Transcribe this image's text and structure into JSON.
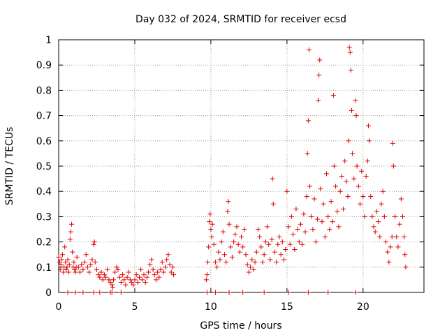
{
  "chart_data": {
    "type": "scatter",
    "title": "Day 032 of 2024, SRMTID for receiver ecsd",
    "xlabel": "GPS time / hours",
    "ylabel": "SRMTID / TECUs",
    "xlim": [
      0,
      24
    ],
    "ylim": [
      0,
      1
    ],
    "xticks": [
      0,
      5,
      10,
      15,
      20
    ],
    "xtick_labels": [
      "0",
      "5",
      "10",
      "15",
      "20"
    ],
    "yticks": [
      0,
      0.1,
      0.2,
      0.3,
      0.4,
      0.5,
      0.6,
      0.7,
      0.8,
      0.9,
      1
    ],
    "ytick_labels": [
      "0",
      "0.1",
      "0.2",
      "0.3",
      "0.4",
      "0.5",
      "0.6",
      "0.7",
      "0.8",
      "0.9",
      "1"
    ],
    "grid": true,
    "marker": "plus",
    "color": "#e00000",
    "series": [
      {
        "name": "SRMTID",
        "points": [
          [
            0.0,
            0.14
          ],
          [
            0.05,
            0.12
          ],
          [
            0.1,
            0.09
          ],
          [
            0.15,
            0.11
          ],
          [
            0.2,
            0.13
          ],
          [
            0.25,
            0.15
          ],
          [
            0.3,
            0.08
          ],
          [
            0.35,
            0.1
          ],
          [
            0.4,
            0.18
          ],
          [
            0.45,
            0.12
          ],
          [
            0.5,
            0.09
          ],
          [
            0.55,
            0.1
          ],
          [
            0.6,
            0.13
          ],
          [
            0.65,
            0.08
          ],
          [
            0.7,
            0.11
          ],
          [
            0.75,
            0.21
          ],
          [
            0.8,
            0.24
          ],
          [
            0.85,
            0.27
          ],
          [
            0.9,
            0.16
          ],
          [
            0.95,
            0.1
          ],
          [
            1.0,
            0.12
          ],
          [
            1.05,
            0.09
          ],
          [
            1.1,
            0.08
          ],
          [
            1.15,
            0.1
          ],
          [
            1.2,
            0.14
          ],
          [
            1.3,
            0.1
          ],
          [
            1.4,
            0.08
          ],
          [
            1.5,
            0.11
          ],
          [
            1.6,
            0.09
          ],
          [
            1.7,
            0.12
          ],
          [
            1.8,
            0.15
          ],
          [
            1.9,
            0.1
          ],
          [
            2.0,
            0.08
          ],
          [
            2.1,
            0.11
          ],
          [
            2.2,
            0.13
          ],
          [
            2.3,
            0.19
          ],
          [
            2.35,
            0.2
          ],
          [
            2.4,
            0.12
          ],
          [
            2.5,
            0.09
          ],
          [
            2.6,
            0.07
          ],
          [
            2.7,
            0.06
          ],
          [
            2.8,
            0.08
          ],
          [
            2.9,
            0.05
          ],
          [
            3.0,
            0.07
          ],
          [
            3.1,
            0.06
          ],
          [
            3.2,
            0.09
          ],
          [
            3.3,
            0.05
          ],
          [
            3.4,
            0.04
          ],
          [
            3.5,
            0.03
          ],
          [
            3.55,
            0.02
          ],
          [
            3.6,
            0.05
          ],
          [
            3.7,
            0.08
          ],
          [
            3.8,
            0.1
          ],
          [
            3.9,
            0.09
          ],
          [
            4.0,
            0.06
          ],
          [
            4.1,
            0.04
          ],
          [
            4.2,
            0.07
          ],
          [
            4.3,
            0.05
          ],
          [
            4.4,
            0.03
          ],
          [
            4.5,
            0.06
          ],
          [
            4.6,
            0.08
          ],
          [
            4.7,
            0.05
          ],
          [
            4.8,
            0.04
          ],
          [
            4.9,
            0.03
          ],
          [
            5.0,
            0.05
          ],
          [
            5.1,
            0.07
          ],
          [
            5.2,
            0.04
          ],
          [
            5.3,
            0.06
          ],
          [
            5.4,
            0.09
          ],
          [
            5.5,
            0.05
          ],
          [
            5.6,
            0.07
          ],
          [
            5.7,
            0.04
          ],
          [
            5.8,
            0.06
          ],
          [
            5.9,
            0.08
          ],
          [
            6.0,
            0.11
          ],
          [
            6.1,
            0.13
          ],
          [
            6.2,
            0.09
          ],
          [
            6.3,
            0.07
          ],
          [
            6.4,
            0.05
          ],
          [
            6.5,
            0.08
          ],
          [
            6.6,
            0.06
          ],
          [
            6.7,
            0.09
          ],
          [
            6.8,
            0.12
          ],
          [
            6.9,
            0.08
          ],
          [
            7.0,
            0.1
          ],
          [
            7.1,
            0.13
          ],
          [
            7.2,
            0.15
          ],
          [
            7.3,
            0.11
          ],
          [
            7.4,
            0.08
          ],
          [
            7.5,
            0.1
          ],
          [
            7.55,
            0.07
          ],
          [
            9.7,
            0.05
          ],
          [
            9.75,
            0.07
          ],
          [
            9.8,
            0.12
          ],
          [
            9.85,
            0.18
          ],
          [
            9.9,
            0.28
          ],
          [
            9.95,
            0.31
          ],
          [
            10.0,
            0.25
          ],
          [
            10.05,
            0.22
          ],
          [
            10.1,
            0.27
          ],
          [
            10.2,
            0.19
          ],
          [
            10.3,
            0.12
          ],
          [
            10.4,
            0.1
          ],
          [
            10.5,
            0.16
          ],
          [
            10.6,
            0.13
          ],
          [
            10.7,
            0.2
          ],
          [
            10.8,
            0.24
          ],
          [
            10.9,
            0.15
          ],
          [
            11.0,
            0.12
          ],
          [
            11.1,
            0.32
          ],
          [
            11.15,
            0.36
          ],
          [
            11.2,
            0.27
          ],
          [
            11.3,
            0.18
          ],
          [
            11.4,
            0.14
          ],
          [
            11.5,
            0.2
          ],
          [
            11.6,
            0.23
          ],
          [
            11.7,
            0.26
          ],
          [
            11.8,
            0.19
          ],
          [
            11.9,
            0.16
          ],
          [
            12.0,
            0.22
          ],
          [
            12.1,
            0.18
          ],
          [
            12.2,
            0.25
          ],
          [
            12.3,
            0.15
          ],
          [
            12.4,
            0.11
          ],
          [
            12.5,
            0.08
          ],
          [
            12.6,
            0.1
          ],
          [
            12.7,
            0.13
          ],
          [
            12.8,
            0.09
          ],
          [
            12.9,
            0.12
          ],
          [
            13.0,
            0.16
          ],
          [
            13.1,
            0.25
          ],
          [
            13.2,
            0.22
          ],
          [
            13.3,
            0.18
          ],
          [
            13.4,
            0.12
          ],
          [
            13.5,
            0.15
          ],
          [
            13.6,
            0.2
          ],
          [
            13.7,
            0.26
          ],
          [
            13.8,
            0.19
          ],
          [
            13.9,
            0.13
          ],
          [
            14.0,
            0.21
          ],
          [
            14.05,
            0.45
          ],
          [
            14.1,
            0.35
          ],
          [
            14.2,
            0.16
          ],
          [
            14.3,
            0.12
          ],
          [
            14.4,
            0.19
          ],
          [
            14.5,
            0.22
          ],
          [
            14.6,
            0.15
          ],
          [
            14.7,
            0.2
          ],
          [
            14.8,
            0.13
          ],
          [
            14.9,
            0.17
          ],
          [
            15.0,
            0.4
          ],
          [
            15.1,
            0.26
          ],
          [
            15.2,
            0.19
          ],
          [
            15.3,
            0.3
          ],
          [
            15.4,
            0.23
          ],
          [
            15.5,
            0.17
          ],
          [
            15.6,
            0.33
          ],
          [
            15.7,
            0.25
          ],
          [
            15.8,
            0.2
          ],
          [
            15.9,
            0.27
          ],
          [
            16.0,
            0.19
          ],
          [
            16.1,
            0.31
          ],
          [
            16.2,
            0.24
          ],
          [
            16.3,
            0.38
          ],
          [
            16.35,
            0.55
          ],
          [
            16.4,
            0.68
          ],
          [
            16.45,
            0.96
          ],
          [
            16.5,
            0.42
          ],
          [
            16.6,
            0.3
          ],
          [
            16.7,
            0.25
          ],
          [
            16.8,
            0.37
          ],
          [
            16.9,
            0.2
          ],
          [
            17.0,
            0.29
          ],
          [
            17.05,
            0.76
          ],
          [
            17.1,
            0.86
          ],
          [
            17.15,
            0.92
          ],
          [
            17.2,
            0.41
          ],
          [
            17.3,
            0.28
          ],
          [
            17.4,
            0.35
          ],
          [
            17.5,
            0.22
          ],
          [
            17.6,
            0.47
          ],
          [
            17.7,
            0.3
          ],
          [
            17.8,
            0.25
          ],
          [
            17.9,
            0.36
          ],
          [
            18.0,
            0.28
          ],
          [
            18.05,
            0.78
          ],
          [
            18.1,
            0.5
          ],
          [
            18.2,
            0.42
          ],
          [
            18.3,
            0.32
          ],
          [
            18.4,
            0.26
          ],
          [
            18.5,
            0.4
          ],
          [
            18.6,
            0.46
          ],
          [
            18.7,
            0.33
          ],
          [
            18.8,
            0.52
          ],
          [
            18.9,
            0.44
          ],
          [
            19.0,
            0.38
          ],
          [
            19.05,
            0.6
          ],
          [
            19.1,
            0.97
          ],
          [
            19.15,
            0.95
          ],
          [
            19.2,
            0.88
          ],
          [
            19.25,
            0.72
          ],
          [
            19.3,
            0.55
          ],
          [
            19.4,
            0.45
          ],
          [
            19.5,
            0.76
          ],
          [
            19.55,
            0.7
          ],
          [
            19.6,
            0.5
          ],
          [
            19.7,
            0.42
          ],
          [
            19.8,
            0.35
          ],
          [
            19.9,
            0.48
          ],
          [
            20.0,
            0.38
          ],
          [
            20.1,
            0.3
          ],
          [
            20.2,
            0.46
          ],
          [
            20.3,
            0.52
          ],
          [
            20.35,
            0.66
          ],
          [
            20.4,
            0.6
          ],
          [
            20.5,
            0.38
          ],
          [
            20.6,
            0.3
          ],
          [
            20.7,
            0.26
          ],
          [
            20.8,
            0.24
          ],
          [
            20.9,
            0.32
          ],
          [
            21.0,
            0.28
          ],
          [
            21.1,
            0.22
          ],
          [
            21.2,
            0.35
          ],
          [
            21.3,
            0.4
          ],
          [
            21.4,
            0.3
          ],
          [
            21.5,
            0.2
          ],
          [
            21.6,
            0.16
          ],
          [
            21.7,
            0.12
          ],
          [
            21.8,
            0.18
          ],
          [
            21.9,
            0.22
          ],
          [
            21.95,
            0.59
          ],
          [
            22.0,
            0.5
          ],
          [
            22.1,
            0.3
          ],
          [
            22.2,
            0.22
          ],
          [
            22.3,
            0.18
          ],
          [
            22.4,
            0.27
          ],
          [
            22.5,
            0.37
          ],
          [
            22.6,
            0.3
          ],
          [
            22.7,
            0.22
          ],
          [
            22.75,
            0.15
          ],
          [
            22.8,
            0.1
          ]
        ]
      }
    ],
    "zero_markers_x": [
      0.6,
      1.1,
      1.6,
      2.3,
      2.7,
      3.4,
      3.5,
      4.1,
      9.75,
      10.3,
      11.2,
      12.1,
      13.5,
      15.1,
      16.4,
      17.7,
      19.5
    ]
  }
}
